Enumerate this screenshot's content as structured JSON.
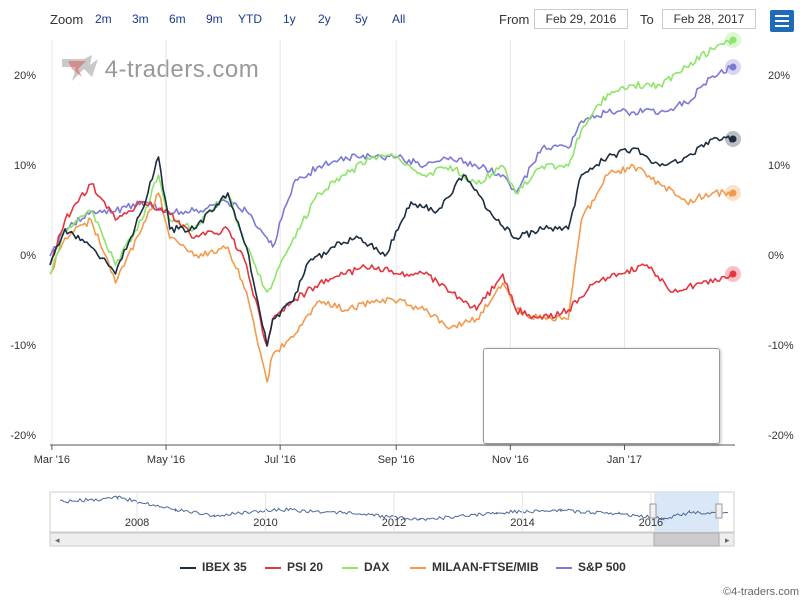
{
  "toolbar": {
    "zoom_label": "Zoom",
    "zoom_buttons": [
      "2m",
      "3m",
      "6m",
      "9m",
      "YTD",
      "1y",
      "2y",
      "5y",
      "All"
    ],
    "from_label": "From",
    "from_value": "Feb 29, 2016",
    "to_label": "To",
    "to_value": "Feb 28, 2017"
  },
  "watermark": {
    "text": "4-traders.com"
  },
  "credit": "©4-traders.com",
  "colors": {
    "IBEX 35": "#1c2e40",
    "PSI 20": "#e3363e",
    "DAX": "#8ee56a",
    "MILAAN-FTSE/MIB": "#f29b4e",
    "S&P 500": "#7d7ad6"
  },
  "chart_data": {
    "type": "line",
    "x_axis_labels": [
      "Mar '16",
      "May '16",
      "Jul '16",
      "Sep '16",
      "Nov '16",
      "Jan '17"
    ],
    "y_axis_labels": [
      "-20%",
      "-10%",
      "0%",
      "10%",
      "20%"
    ],
    "ylim": [
      -20,
      25
    ],
    "y_unit": "%",
    "grid": "vertical",
    "legend": "bottom",
    "series": [
      {
        "name": "IBEX 35",
        "points": [
          [
            "2016-02-29",
            0
          ],
          [
            "2016-03-08",
            4
          ],
          [
            "2016-03-22",
            2
          ],
          [
            "2016-04-04",
            -1
          ],
          [
            "2016-04-18",
            6
          ],
          [
            "2016-04-27",
            12
          ],
          [
            "2016-05-03",
            4
          ],
          [
            "2016-05-16",
            4
          ],
          [
            "2016-06-03",
            8
          ],
          [
            "2016-06-13",
            2
          ],
          [
            "2016-06-24",
            -9
          ],
          [
            "2016-06-27",
            -6
          ],
          [
            "2016-07-08",
            -4
          ],
          [
            "2016-07-15",
            0
          ],
          [
            "2016-07-29",
            2
          ],
          [
            "2016-08-12",
            3
          ],
          [
            "2016-08-26",
            1
          ],
          [
            "2016-09-09",
            7
          ],
          [
            "2016-09-23",
            6
          ],
          [
            "2016-10-07",
            10
          ],
          [
            "2016-10-21",
            6
          ],
          [
            "2016-11-04",
            3
          ],
          [
            "2016-11-18",
            4
          ],
          [
            "2016-12-02",
            4
          ],
          [
            "2016-12-09",
            10
          ],
          [
            "2016-12-23",
            12
          ],
          [
            "2017-01-06",
            13
          ],
          [
            "2017-01-20",
            11
          ],
          [
            "2017-02-03",
            12
          ],
          [
            "2017-02-17",
            14
          ],
          [
            "2017-02-28",
            14
          ]
        ]
      },
      {
        "name": "PSI 20",
        "points": [
          [
            "2016-02-29",
            0
          ],
          [
            "2016-03-08",
            5
          ],
          [
            "2016-03-22",
            9
          ],
          [
            "2016-04-04",
            5
          ],
          [
            "2016-04-18",
            7
          ],
          [
            "2016-05-02",
            6
          ],
          [
            "2016-05-16",
            3
          ],
          [
            "2016-06-03",
            4
          ],
          [
            "2016-06-13",
            0
          ],
          [
            "2016-06-24",
            -9
          ],
          [
            "2016-06-27",
            -6
          ],
          [
            "2016-07-08",
            -4
          ],
          [
            "2016-07-22",
            -2
          ],
          [
            "2016-08-05",
            -1
          ],
          [
            "2016-08-19",
            0
          ],
          [
            "2016-09-02",
            -1
          ],
          [
            "2016-09-16",
            -1
          ],
          [
            "2016-09-30",
            -3
          ],
          [
            "2016-10-14",
            -5
          ],
          [
            "2016-10-28",
            -1
          ],
          [
            "2016-11-04",
            -5
          ],
          [
            "2016-11-18",
            -6
          ],
          [
            "2016-12-02",
            -5
          ],
          [
            "2016-12-16",
            -2
          ],
          [
            "2016-12-30",
            -1
          ],
          [
            "2017-01-13",
            0
          ],
          [
            "2017-01-27",
            -3
          ],
          [
            "2017-02-10",
            -2
          ],
          [
            "2017-02-28",
            -1
          ]
        ]
      },
      {
        "name": "DAX",
        "points": [
          [
            "2016-02-29",
            -1
          ],
          [
            "2016-03-08",
            4
          ],
          [
            "2016-03-22",
            6
          ],
          [
            "2016-04-04",
            0
          ],
          [
            "2016-04-18",
            5
          ],
          [
            "2016-04-27",
            10
          ],
          [
            "2016-05-03",
            5
          ],
          [
            "2016-05-16",
            4
          ],
          [
            "2016-06-03",
            8
          ],
          [
            "2016-06-13",
            2
          ],
          [
            "2016-06-24",
            -3
          ],
          [
            "2016-06-27",
            -2
          ],
          [
            "2016-07-08",
            3
          ],
          [
            "2016-07-22",
            8
          ],
          [
            "2016-08-05",
            10
          ],
          [
            "2016-08-19",
            12
          ],
          [
            "2016-09-02",
            12
          ],
          [
            "2016-09-16",
            10
          ],
          [
            "2016-09-30",
            11
          ],
          [
            "2016-10-14",
            9
          ],
          [
            "2016-10-28",
            11
          ],
          [
            "2016-11-04",
            8
          ],
          [
            "2016-11-18",
            11
          ],
          [
            "2016-12-02",
            11
          ],
          [
            "2016-12-09",
            15
          ],
          [
            "2016-12-23",
            19
          ],
          [
            "2017-01-06",
            20
          ],
          [
            "2017-01-20",
            20
          ],
          [
            "2017-02-03",
            22
          ],
          [
            "2017-02-17",
            24
          ],
          [
            "2017-02-28",
            25
          ]
        ]
      },
      {
        "name": "MILAAN-FTSE/MIB",
        "points": [
          [
            "2016-02-29",
            -1
          ],
          [
            "2016-03-08",
            3
          ],
          [
            "2016-03-22",
            5
          ],
          [
            "2016-04-04",
            -2
          ],
          [
            "2016-04-18",
            4
          ],
          [
            "2016-04-27",
            8
          ],
          [
            "2016-05-03",
            3
          ],
          [
            "2016-05-16",
            1
          ],
          [
            "2016-06-03",
            2
          ],
          [
            "2016-06-13",
            -3
          ],
          [
            "2016-06-24",
            -13
          ],
          [
            "2016-06-27",
            -10
          ],
          [
            "2016-07-08",
            -8
          ],
          [
            "2016-07-22",
            -4
          ],
          [
            "2016-08-05",
            -5
          ],
          [
            "2016-08-19",
            -4
          ],
          [
            "2016-09-02",
            -4
          ],
          [
            "2016-09-16",
            -5
          ],
          [
            "2016-09-30",
            -7
          ],
          [
            "2016-10-14",
            -6
          ],
          [
            "2016-10-28",
            -2
          ],
          [
            "2016-11-04",
            -5
          ],
          [
            "2016-11-18",
            -6
          ],
          [
            "2016-12-02",
            -6
          ],
          [
            "2016-12-09",
            5
          ],
          [
            "2016-12-23",
            10
          ],
          [
            "2017-01-06",
            11
          ],
          [
            "2017-01-20",
            9
          ],
          [
            "2017-02-03",
            7
          ],
          [
            "2017-02-17",
            8
          ],
          [
            "2017-02-28",
            8
          ]
        ]
      },
      {
        "name": "S&P 500",
        "points": [
          [
            "2016-02-29",
            1
          ],
          [
            "2016-03-08",
            4
          ],
          [
            "2016-03-22",
            6
          ],
          [
            "2016-04-04",
            6
          ],
          [
            "2016-04-18",
            7
          ],
          [
            "2016-05-02",
            6
          ],
          [
            "2016-05-16",
            6
          ],
          [
            "2016-06-03",
            7
          ],
          [
            "2016-06-13",
            6
          ],
          [
            "2016-06-24",
            3
          ],
          [
            "2016-06-27",
            2
          ],
          [
            "2016-07-08",
            9
          ],
          [
            "2016-07-22",
            11
          ],
          [
            "2016-08-05",
            12
          ],
          [
            "2016-08-19",
            12
          ],
          [
            "2016-09-02",
            12
          ],
          [
            "2016-09-16",
            11
          ],
          [
            "2016-09-30",
            12
          ],
          [
            "2016-10-14",
            11
          ],
          [
            "2016-10-28",
            10
          ],
          [
            "2016-11-04",
            8
          ],
          [
            "2016-11-18",
            13
          ],
          [
            "2016-12-02",
            13
          ],
          [
            "2016-12-09",
            16
          ],
          [
            "2016-12-23",
            17
          ],
          [
            "2017-01-06",
            17
          ],
          [
            "2017-01-20",
            17
          ],
          [
            "2017-02-03",
            18
          ],
          [
            "2017-02-17",
            21
          ],
          [
            "2017-02-28",
            22
          ]
        ]
      }
    ]
  },
  "navigator": {
    "year_labels": [
      "2008",
      "2010",
      "2012",
      "2014",
      "2016"
    ]
  }
}
